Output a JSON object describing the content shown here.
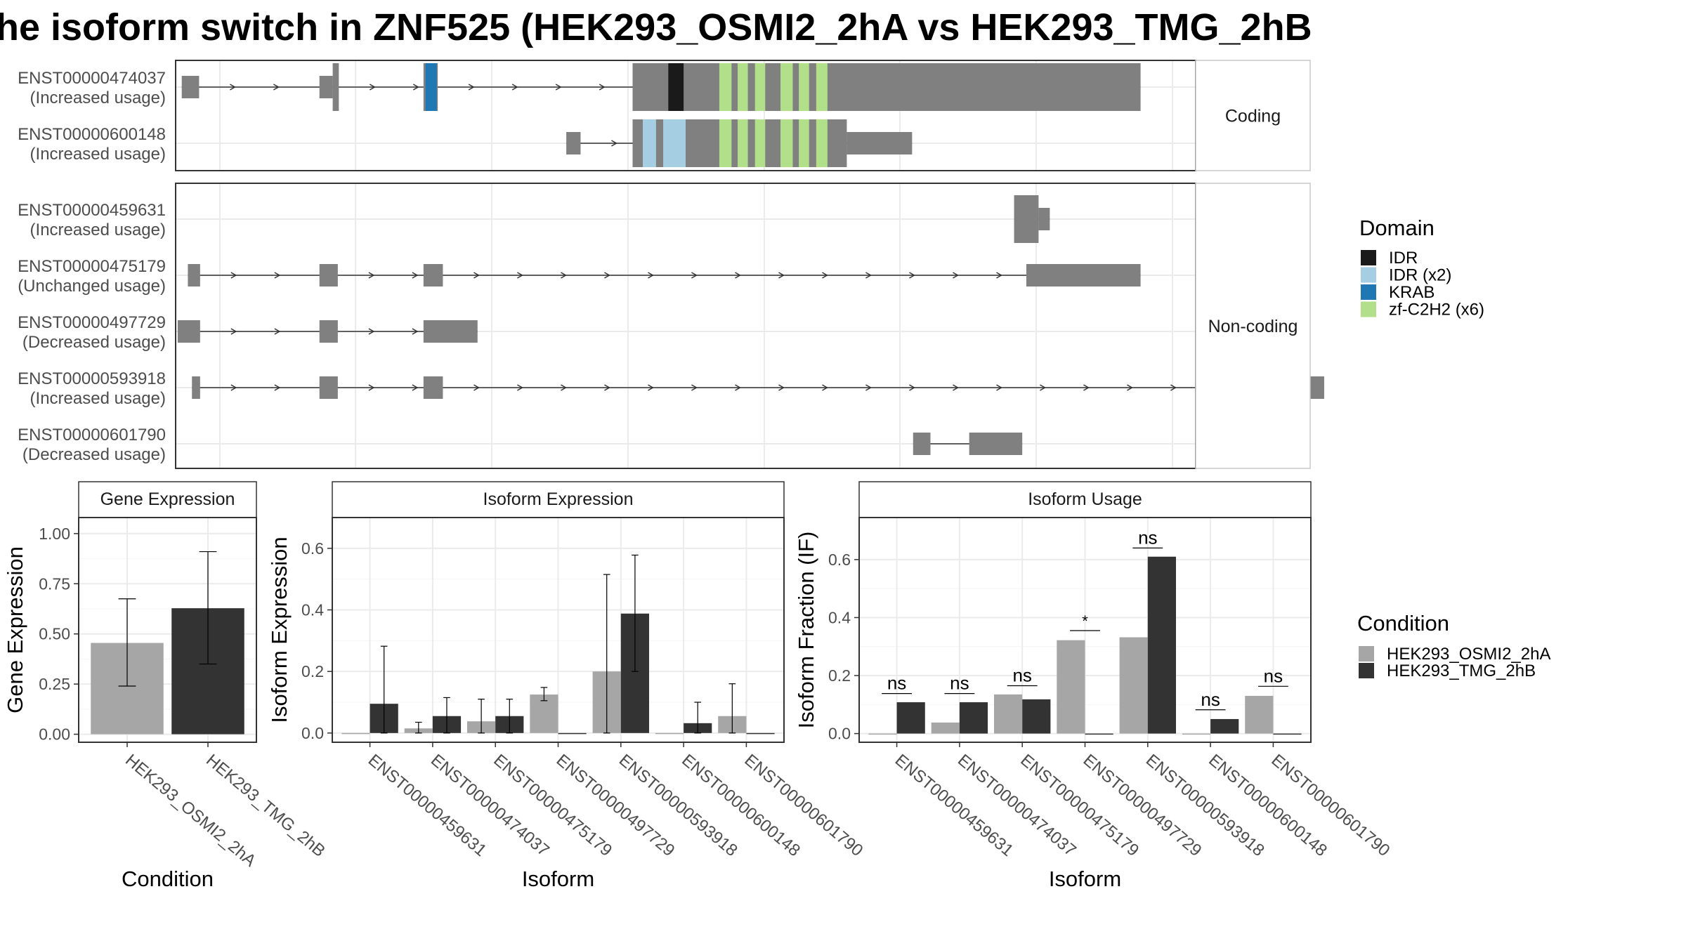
{
  "title": "he isoform switch in ZNF525 (HEK293_OSMI2_2hA vs HEK293_TMG_2hB",
  "colors": {
    "exon": "#808080",
    "cond1": "#a6a6a6",
    "cond2": "#333333",
    "IDR": "#1a1a1a",
    "IDR (x2)": "#a6cee3",
    "KRAB": "#1f78b4",
    "zf-C2H2 (x6)": "#b2df8a"
  },
  "structure": {
    "facets": [
      {
        "label": "Coding",
        "transcripts": [
          {
            "id": "ENST00000474037",
            "usage": "(Increased usage)"
          },
          {
            "id": "ENST00000600148",
            "usage": "(Increased usage)"
          }
        ]
      },
      {
        "label": "Non-coding",
        "transcripts": [
          {
            "id": "ENST00000459631",
            "usage": "(Increased usage)"
          },
          {
            "id": "ENST00000475179",
            "usage": "(Unchanged usage)"
          },
          {
            "id": "ENST00000497729",
            "usage": "(Decreased usage)"
          },
          {
            "id": "ENST00000593918",
            "usage": "(Increased usage)"
          },
          {
            "id": "ENST00000601790",
            "usage": "(Decreased usage)"
          }
        ]
      }
    ],
    "genomic_range": [
      0,
      1000
    ],
    "transcripts": {
      "ENST00000474037": {
        "exons": [
          [
            6,
            23,
            "n"
          ],
          [
            141,
            154,
            "n"
          ],
          [
            154,
            160,
            "w"
          ],
          [
            243,
            257,
            "w"
          ],
          [
            448,
            946,
            "w"
          ]
        ],
        "domains": [
          [
            245,
            256,
            "KRAB"
          ],
          [
            483,
            498,
            "IDR"
          ],
          [
            533,
            545,
            "zf-C2H2 (x6)"
          ],
          [
            551,
            561,
            "zf-C2H2 (x6)"
          ],
          [
            568,
            578,
            "zf-C2H2 (x6)"
          ],
          [
            593,
            605,
            "zf-C2H2 (x6)"
          ],
          [
            611,
            621,
            "zf-C2H2 (x6)"
          ],
          [
            628,
            639,
            "zf-C2H2 (x6)"
          ]
        ]
      },
      "ENST00000600148": {
        "exons": [
          [
            383,
            397,
            "n"
          ],
          [
            448,
            658,
            "w"
          ],
          [
            658,
            722,
            "n"
          ]
        ],
        "domains": [
          [
            458,
            471,
            "IDR (x2)"
          ],
          [
            478,
            500,
            "IDR (x2)"
          ],
          [
            533,
            545,
            "zf-C2H2 (x6)"
          ],
          [
            551,
            561,
            "zf-C2H2 (x6)"
          ],
          [
            568,
            578,
            "zf-C2H2 (x6)"
          ],
          [
            593,
            605,
            "zf-C2H2 (x6)"
          ],
          [
            611,
            621,
            "zf-C2H2 (x6)"
          ],
          [
            628,
            639,
            "zf-C2H2 (x6)"
          ]
        ]
      },
      "ENST00000459631": {
        "exons": [
          [
            822,
            846,
            "w"
          ],
          [
            846,
            857,
            "n"
          ]
        ],
        "domains": []
      },
      "ENST00000475179": {
        "exons": [
          [
            12,
            24,
            "n"
          ],
          [
            141,
            159,
            "n"
          ],
          [
            243,
            262,
            "n"
          ],
          [
            834,
            946,
            "n"
          ]
        ],
        "domains": []
      },
      "ENST00000497729": {
        "exons": [
          [
            2,
            24,
            "n"
          ],
          [
            141,
            159,
            "n"
          ],
          [
            243,
            296,
            "n"
          ]
        ],
        "domains": []
      },
      "ENST00000593918": {
        "exons": [
          [
            16,
            24,
            "n"
          ],
          [
            141,
            159,
            "n"
          ],
          [
            243,
            262,
            "n"
          ],
          [
            1098,
            1126,
            "n"
          ]
        ],
        "domains": []
      },
      "ENST00000601790": {
        "exons": [
          [
            723,
            740,
            "n"
          ],
          [
            778,
            830,
            "n"
          ]
        ],
        "domains": []
      }
    }
  },
  "legends": {
    "domain_title": "Domain",
    "domains": [
      "IDR",
      "IDR (x2)",
      "KRAB",
      "zf-C2H2 (x6)"
    ],
    "condition_title": "Condition",
    "conditions": [
      "HEK293_OSMI2_2hA",
      "HEK293_TMG_2hB"
    ]
  },
  "chart_data": [
    {
      "type": "bar",
      "title": "Gene Expression",
      "xlabel": "Condition",
      "ylabel": "Gene Expression",
      "categories": [
        "HEK293_OSMI2_2hA",
        "HEK293_TMG_2hB"
      ],
      "values": [
        0.455,
        0.628
      ],
      "error_low": [
        0.24,
        0.35
      ],
      "error_high": [
        0.675,
        0.91
      ],
      "ylim": [
        -0.04,
        1.08
      ],
      "yticks": [
        "0.00",
        "0.25",
        "0.50",
        "0.75",
        "1.00"
      ],
      "ytick_values": [
        0,
        0.25,
        0.5,
        0.75,
        1.0
      ]
    },
    {
      "type": "bar",
      "title": "Isoform Expression",
      "xlabel": "Isoform",
      "ylabel": "Isoform Expression",
      "categories": [
        "ENST00000459631",
        "ENST00000474037",
        "ENST00000475179",
        "ENST00000497729",
        "ENST00000593918",
        "ENST00000600148",
        "ENST00000601790"
      ],
      "series": [
        {
          "name": "HEK293_OSMI2_2hA",
          "values": [
            0.0,
            0.015,
            0.038,
            0.125,
            0.2,
            0.0,
            0.055
          ],
          "error_low": [
            null,
            0.0,
            0.0,
            0.105,
            0.0,
            null,
            0.0
          ],
          "error_high": [
            null,
            0.035,
            0.11,
            0.148,
            0.515,
            null,
            0.16
          ]
        },
        {
          "name": "HEK293_TMG_2hB",
          "values": [
            0.095,
            0.055,
            0.055,
            0.0,
            0.388,
            0.032,
            0.0
          ],
          "error_low": [
            0.0,
            0.0,
            0.0,
            null,
            0.2,
            0.0,
            null
          ],
          "error_high": [
            0.282,
            0.115,
            0.11,
            null,
            0.578,
            0.1,
            null
          ]
        }
      ],
      "ylim": [
        -0.03,
        0.7
      ],
      "yticks": [
        "0.0",
        "0.2",
        "0.4",
        "0.6"
      ],
      "ytick_values": [
        0,
        0.2,
        0.4,
        0.6
      ]
    },
    {
      "type": "bar",
      "title": "Isoform Usage",
      "xlabel": "Isoform",
      "ylabel": "Isoform Fraction (IF)",
      "categories": [
        "ENST00000459631",
        "ENST00000474037",
        "ENST00000475179",
        "ENST00000497729",
        "ENST00000593918",
        "ENST00000600148",
        "ENST00000601790"
      ],
      "series": [
        {
          "name": "HEK293_OSMI2_2hA",
          "values": [
            0.0,
            0.038,
            0.135,
            0.322,
            0.332,
            0.0,
            0.13
          ]
        },
        {
          "name": "HEK293_TMG_2hB",
          "values": [
            0.108,
            0.108,
            0.118,
            0.0,
            0.61,
            0.05,
            0.0
          ]
        }
      ],
      "significance": [
        "ns",
        "ns",
        "ns",
        "*",
        "ns",
        "ns",
        "ns"
      ],
      "significance_y": [
        0.138,
        0.138,
        0.165,
        0.355,
        0.64,
        0.082,
        0.163
      ],
      "ylim": [
        -0.03,
        0.745
      ],
      "yticks": [
        "0.0",
        "0.2",
        "0.4",
        "0.6"
      ],
      "ytick_values": [
        0,
        0.2,
        0.4,
        0.6
      ]
    }
  ]
}
